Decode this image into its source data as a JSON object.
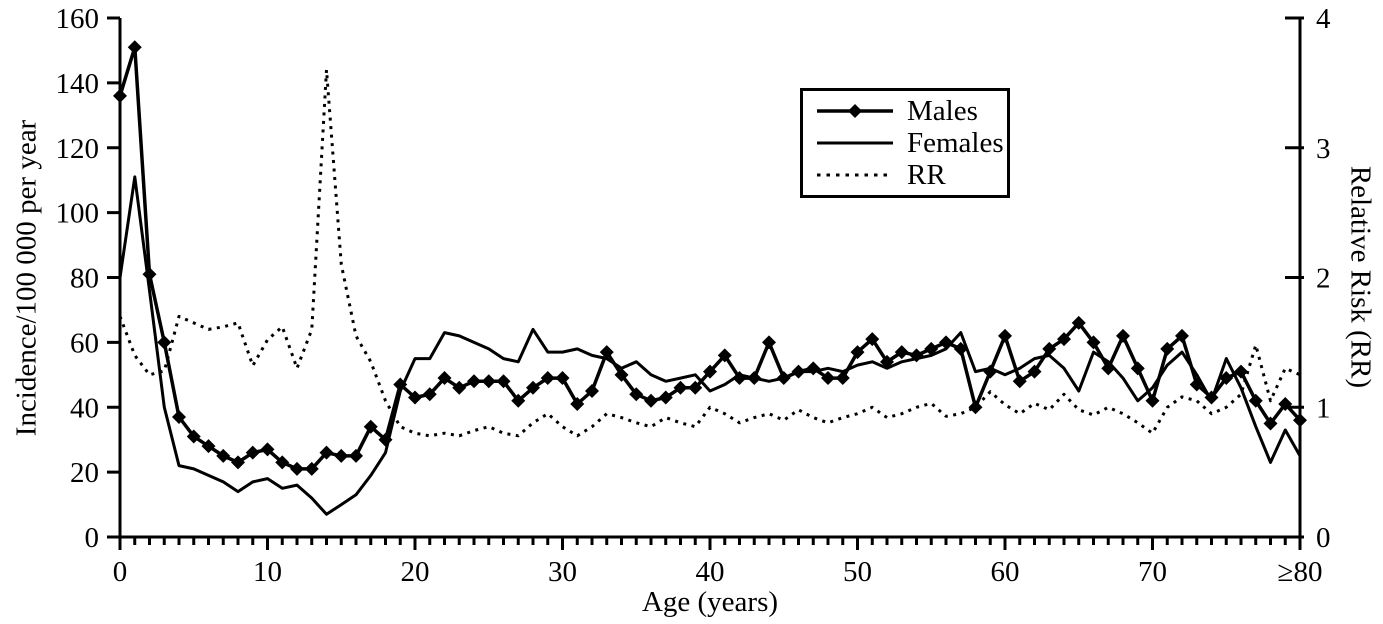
{
  "chart_data": {
    "type": "line",
    "title": "",
    "xlabel": "Age (years)",
    "ylabel_left": "Incidence/100 000 per year",
    "ylabel_right": "Relative Risk (RR)",
    "xlim": [
      0,
      80
    ],
    "x_tick_step_minor": 1,
    "x_major_ticks": [
      0,
      10,
      20,
      30,
      40,
      50,
      60,
      70,
      80
    ],
    "x_major_tick_labels": [
      "0",
      "10",
      "20",
      "30",
      "40",
      "50",
      "60",
      "70",
      "≥80"
    ],
    "ylim_left": [
      0,
      160
    ],
    "y_ticks_left": [
      0,
      20,
      40,
      60,
      80,
      100,
      120,
      140,
      160
    ],
    "ylim_right": [
      0,
      4
    ],
    "y_ticks_right": [
      0,
      1,
      2,
      3,
      4
    ],
    "grid": false,
    "legend_position": "upper-center",
    "colors": {
      "foreground": "#000000",
      "background": "#ffffff"
    },
    "x": [
      0,
      1,
      2,
      3,
      4,
      5,
      6,
      7,
      8,
      9,
      10,
      11,
      12,
      13,
      14,
      15,
      16,
      17,
      18,
      19,
      20,
      21,
      22,
      23,
      24,
      25,
      26,
      27,
      28,
      29,
      30,
      31,
      32,
      33,
      34,
      35,
      36,
      37,
      38,
      39,
      40,
      41,
      42,
      43,
      44,
      45,
      46,
      47,
      48,
      49,
      50,
      51,
      52,
      53,
      54,
      55,
      56,
      57,
      58,
      59,
      60,
      61,
      62,
      63,
      64,
      65,
      66,
      67,
      68,
      69,
      70,
      71,
      72,
      73,
      74,
      75,
      76,
      77,
      78,
      79,
      80
    ],
    "series": [
      {
        "name": "Males",
        "axis": "left",
        "line": "solid",
        "marker": "diamond",
        "values": [
          136,
          151,
          81,
          60,
          37,
          31,
          28,
          25,
          23,
          26,
          27,
          23,
          21,
          21,
          26,
          25,
          25,
          34,
          30,
          47,
          43,
          44,
          49,
          46,
          48,
          48,
          48,
          42,
          46,
          49,
          49,
          41,
          45,
          57,
          50,
          44,
          42,
          43,
          46,
          46,
          51,
          56,
          49,
          49,
          60,
          49,
          51,
          52,
          49,
          49,
          57,
          61,
          54,
          57,
          56,
          58,
          60,
          58,
          40,
          51,
          62,
          48,
          51,
          58,
          61,
          66,
          60,
          52,
          62,
          52,
          42,
          58,
          62,
          47,
          43,
          49,
          51,
          42,
          35,
          41,
          36
        ]
      },
      {
        "name": "Females",
        "axis": "left",
        "line": "solid",
        "marker": "none",
        "values": [
          80,
          111,
          76,
          40,
          22,
          21,
          19,
          17,
          14,
          17,
          18,
          15,
          16,
          12,
          7,
          10,
          13,
          19,
          26,
          45,
          55,
          55,
          63,
          62,
          60,
          58,
          55,
          54,
          64,
          57,
          57,
          58,
          56,
          55,
          52,
          54,
          50,
          48,
          49,
          50,
          45,
          47,
          50,
          49,
          48,
          49,
          51,
          51,
          52,
          51,
          53,
          54,
          52,
          54,
          55,
          56,
          58,
          63,
          51,
          52,
          50,
          52,
          55,
          56,
          52,
          45,
          57,
          54,
          49,
          42,
          46,
          53,
          57,
          50,
          42,
          55,
          46,
          34,
          23,
          33,
          25
        ]
      },
      {
        "name": "RR",
        "axis": "right",
        "line": "dotted",
        "marker": "none",
        "values": [
          1.7,
          1.4,
          1.25,
          1.28,
          1.7,
          1.65,
          1.6,
          1.62,
          1.65,
          1.32,
          1.52,
          1.62,
          1.3,
          1.6,
          3.6,
          2.1,
          1.55,
          1.35,
          1.05,
          0.85,
          0.8,
          0.78,
          0.8,
          0.78,
          0.82,
          0.85,
          0.8,
          0.78,
          0.88,
          0.95,
          0.85,
          0.78,
          0.85,
          0.95,
          0.92,
          0.88,
          0.85,
          0.92,
          0.88,
          0.85,
          1.0,
          0.95,
          0.88,
          0.92,
          0.95,
          0.9,
          0.98,
          0.92,
          0.88,
          0.92,
          0.95,
          1.0,
          0.92,
          0.95,
          1.0,
          1.03,
          0.93,
          0.95,
          1.0,
          1.12,
          1.02,
          0.95,
          1.03,
          0.98,
          1.1,
          0.98,
          0.94,
          1.0,
          0.95,
          0.88,
          0.8,
          1.0,
          1.08,
          1.05,
          0.95,
          1.0,
          1.1,
          1.48,
          1.05,
          1.3,
          1.25
        ]
      }
    ]
  }
}
